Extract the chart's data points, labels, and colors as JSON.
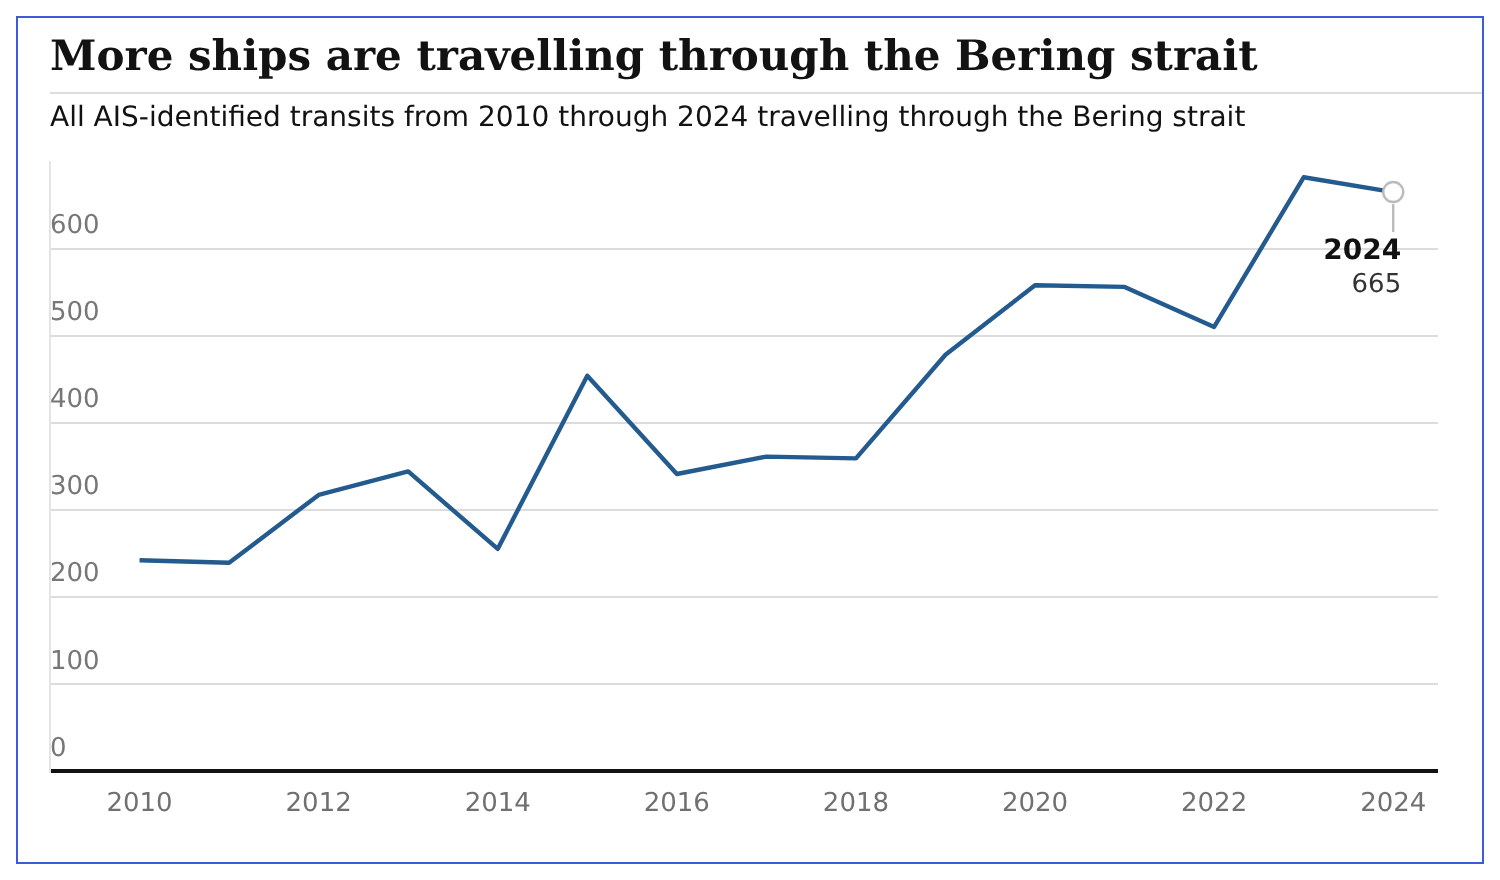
{
  "chart_data": {
    "type": "line",
    "title": "More ships are travelling through the Bering strait",
    "subtitle": "All AIS-identified transits from 2010 through 2024 travelling through the Bering strait",
    "x": [
      2010,
      2011,
      2012,
      2013,
      2014,
      2015,
      2016,
      2017,
      2018,
      2019,
      2020,
      2021,
      2022,
      2023,
      2024
    ],
    "series": [
      {
        "color": "#245b8f",
        "values": [
          242,
          239,
          317,
          344,
          255,
          454,
          341,
          361,
          359,
          478,
          558,
          556,
          510,
          682,
          665
        ]
      }
    ],
    "xlim": [
      2009,
      2024.5
    ],
    "xticks": [
      2010,
      2012,
      2014,
      2016,
      2018,
      2020,
      2022,
      2024
    ],
    "ylim": [
      0,
      700
    ],
    "yticks": [
      0,
      100,
      200,
      300,
      400,
      500,
      600
    ],
    "grid": "y",
    "legend": false,
    "marker": "none",
    "line_style": "solid",
    "annotations": [
      {
        "text": "2024\n665",
        "x": 2024,
        "y": 665
      }
    ]
  }
}
